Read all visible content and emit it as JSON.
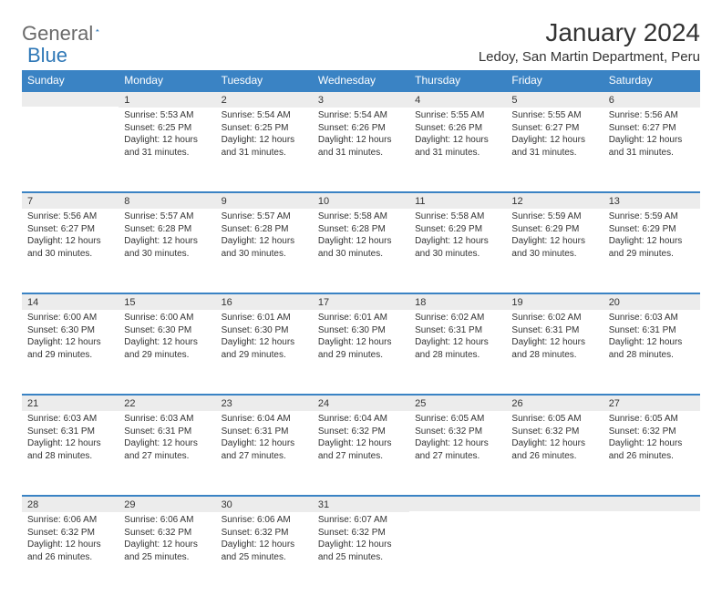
{
  "logo": {
    "textGray": "General",
    "textBlue": "Blue"
  },
  "title": "January 2024",
  "location": "Ledoy, San Martin Department, Peru",
  "colors": {
    "header_bg": "#3a83c4",
    "daynum_bg": "#ececec",
    "border_top": "#3a83c4",
    "text": "#333333",
    "logo_gray": "#6a6a6a",
    "logo_blue": "#2f78b7"
  },
  "weekdays": [
    "Sunday",
    "Monday",
    "Tuesday",
    "Wednesday",
    "Thursday",
    "Friday",
    "Saturday"
  ],
  "weeks": [
    [
      null,
      {
        "n": "1",
        "sr": "Sunrise: 5:53 AM",
        "ss": "Sunset: 6:25 PM",
        "d1": "Daylight: 12 hours",
        "d2": "and 31 minutes."
      },
      {
        "n": "2",
        "sr": "Sunrise: 5:54 AM",
        "ss": "Sunset: 6:25 PM",
        "d1": "Daylight: 12 hours",
        "d2": "and 31 minutes."
      },
      {
        "n": "3",
        "sr": "Sunrise: 5:54 AM",
        "ss": "Sunset: 6:26 PM",
        "d1": "Daylight: 12 hours",
        "d2": "and 31 minutes."
      },
      {
        "n": "4",
        "sr": "Sunrise: 5:55 AM",
        "ss": "Sunset: 6:26 PM",
        "d1": "Daylight: 12 hours",
        "d2": "and 31 minutes."
      },
      {
        "n": "5",
        "sr": "Sunrise: 5:55 AM",
        "ss": "Sunset: 6:27 PM",
        "d1": "Daylight: 12 hours",
        "d2": "and 31 minutes."
      },
      {
        "n": "6",
        "sr": "Sunrise: 5:56 AM",
        "ss": "Sunset: 6:27 PM",
        "d1": "Daylight: 12 hours",
        "d2": "and 31 minutes."
      }
    ],
    [
      {
        "n": "7",
        "sr": "Sunrise: 5:56 AM",
        "ss": "Sunset: 6:27 PM",
        "d1": "Daylight: 12 hours",
        "d2": "and 30 minutes."
      },
      {
        "n": "8",
        "sr": "Sunrise: 5:57 AM",
        "ss": "Sunset: 6:28 PM",
        "d1": "Daylight: 12 hours",
        "d2": "and 30 minutes."
      },
      {
        "n": "9",
        "sr": "Sunrise: 5:57 AM",
        "ss": "Sunset: 6:28 PM",
        "d1": "Daylight: 12 hours",
        "d2": "and 30 minutes."
      },
      {
        "n": "10",
        "sr": "Sunrise: 5:58 AM",
        "ss": "Sunset: 6:28 PM",
        "d1": "Daylight: 12 hours",
        "d2": "and 30 minutes."
      },
      {
        "n": "11",
        "sr": "Sunrise: 5:58 AM",
        "ss": "Sunset: 6:29 PM",
        "d1": "Daylight: 12 hours",
        "d2": "and 30 minutes."
      },
      {
        "n": "12",
        "sr": "Sunrise: 5:59 AM",
        "ss": "Sunset: 6:29 PM",
        "d1": "Daylight: 12 hours",
        "d2": "and 30 minutes."
      },
      {
        "n": "13",
        "sr": "Sunrise: 5:59 AM",
        "ss": "Sunset: 6:29 PM",
        "d1": "Daylight: 12 hours",
        "d2": "and 29 minutes."
      }
    ],
    [
      {
        "n": "14",
        "sr": "Sunrise: 6:00 AM",
        "ss": "Sunset: 6:30 PM",
        "d1": "Daylight: 12 hours",
        "d2": "and 29 minutes."
      },
      {
        "n": "15",
        "sr": "Sunrise: 6:00 AM",
        "ss": "Sunset: 6:30 PM",
        "d1": "Daylight: 12 hours",
        "d2": "and 29 minutes."
      },
      {
        "n": "16",
        "sr": "Sunrise: 6:01 AM",
        "ss": "Sunset: 6:30 PM",
        "d1": "Daylight: 12 hours",
        "d2": "and 29 minutes."
      },
      {
        "n": "17",
        "sr": "Sunrise: 6:01 AM",
        "ss": "Sunset: 6:30 PM",
        "d1": "Daylight: 12 hours",
        "d2": "and 29 minutes."
      },
      {
        "n": "18",
        "sr": "Sunrise: 6:02 AM",
        "ss": "Sunset: 6:31 PM",
        "d1": "Daylight: 12 hours",
        "d2": "and 28 minutes."
      },
      {
        "n": "19",
        "sr": "Sunrise: 6:02 AM",
        "ss": "Sunset: 6:31 PM",
        "d1": "Daylight: 12 hours",
        "d2": "and 28 minutes."
      },
      {
        "n": "20",
        "sr": "Sunrise: 6:03 AM",
        "ss": "Sunset: 6:31 PM",
        "d1": "Daylight: 12 hours",
        "d2": "and 28 minutes."
      }
    ],
    [
      {
        "n": "21",
        "sr": "Sunrise: 6:03 AM",
        "ss": "Sunset: 6:31 PM",
        "d1": "Daylight: 12 hours",
        "d2": "and 28 minutes."
      },
      {
        "n": "22",
        "sr": "Sunrise: 6:03 AM",
        "ss": "Sunset: 6:31 PM",
        "d1": "Daylight: 12 hours",
        "d2": "and 27 minutes."
      },
      {
        "n": "23",
        "sr": "Sunrise: 6:04 AM",
        "ss": "Sunset: 6:31 PM",
        "d1": "Daylight: 12 hours",
        "d2": "and 27 minutes."
      },
      {
        "n": "24",
        "sr": "Sunrise: 6:04 AM",
        "ss": "Sunset: 6:32 PM",
        "d1": "Daylight: 12 hours",
        "d2": "and 27 minutes."
      },
      {
        "n": "25",
        "sr": "Sunrise: 6:05 AM",
        "ss": "Sunset: 6:32 PM",
        "d1": "Daylight: 12 hours",
        "d2": "and 27 minutes."
      },
      {
        "n": "26",
        "sr": "Sunrise: 6:05 AM",
        "ss": "Sunset: 6:32 PM",
        "d1": "Daylight: 12 hours",
        "d2": "and 26 minutes."
      },
      {
        "n": "27",
        "sr": "Sunrise: 6:05 AM",
        "ss": "Sunset: 6:32 PM",
        "d1": "Daylight: 12 hours",
        "d2": "and 26 minutes."
      }
    ],
    [
      {
        "n": "28",
        "sr": "Sunrise: 6:06 AM",
        "ss": "Sunset: 6:32 PM",
        "d1": "Daylight: 12 hours",
        "d2": "and 26 minutes."
      },
      {
        "n": "29",
        "sr": "Sunrise: 6:06 AM",
        "ss": "Sunset: 6:32 PM",
        "d1": "Daylight: 12 hours",
        "d2": "and 25 minutes."
      },
      {
        "n": "30",
        "sr": "Sunrise: 6:06 AM",
        "ss": "Sunset: 6:32 PM",
        "d1": "Daylight: 12 hours",
        "d2": "and 25 minutes."
      },
      {
        "n": "31",
        "sr": "Sunrise: 6:07 AM",
        "ss": "Sunset: 6:32 PM",
        "d1": "Daylight: 12 hours",
        "d2": "and 25 minutes."
      },
      null,
      null,
      null
    ]
  ]
}
